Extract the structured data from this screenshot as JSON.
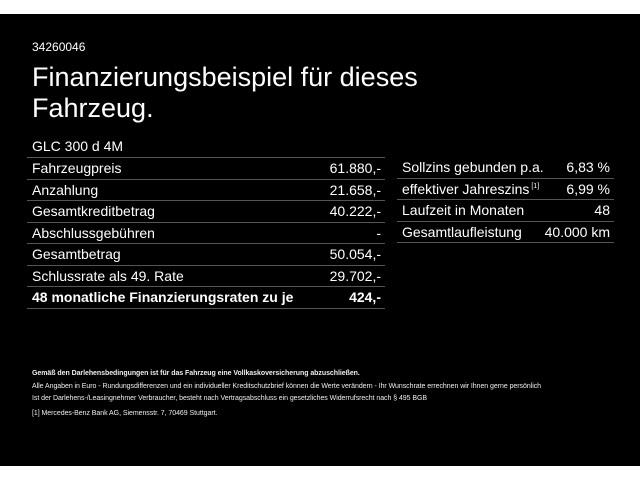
{
  "id": "34260046",
  "title": "Finanzierungsbeispiel für dieses Fahrzeug.",
  "model": "GLC 300 d 4M",
  "left_rows": [
    {
      "label": "Fahrzeugpreis",
      "value": "61.880,-"
    },
    {
      "label": "Anzahlung",
      "value": "21.658,-"
    },
    {
      "label": "Gesamtkreditbetrag",
      "value": "40.222,-"
    },
    {
      "label": "Abschlussgebühren",
      "value": "-"
    },
    {
      "label": "Gesamtbetrag",
      "value": "50.054,-"
    },
    {
      "label": "Schlussrate als 49. Rate",
      "value": "29.702,-"
    },
    {
      "label": "48 monatliche Finanzierungsraten zu je",
      "value": "424,-"
    }
  ],
  "right_rows": [
    {
      "label": "Sollzins gebunden p.a.",
      "value": "6,83 %"
    },
    {
      "label": "effektiver Jahreszins",
      "sup": "[1]",
      "value": "6,99 %"
    },
    {
      "label": "Laufzeit in Monaten",
      "value": "48"
    },
    {
      "label": "Gesamtlaufleistung",
      "value": "40.000 km"
    }
  ],
  "footer": {
    "bold": "Gemäß den Darlehensbedingungen ist für das Fahrzeug eine Vollkaskoversicherung abzuschließen.",
    "line1": "Alle Angaben in Euro - Rundungsdifferenzen und ein individueller Kreditschutzbrief können die Werte verändern - Ihr Wunschrate errechnen wir Ihnen gerne persönlich",
    "line2": "Ist der Darlehens-/Leasingnehmer Verbraucher, besteht nach Vertragsabschluss ein gesetzliches Widerrufsrecht nach § 495 BGB",
    "note": "[1]  Mercedes-Benz Bank AG, Siemensstr. 7, 70469 Stuttgart."
  }
}
